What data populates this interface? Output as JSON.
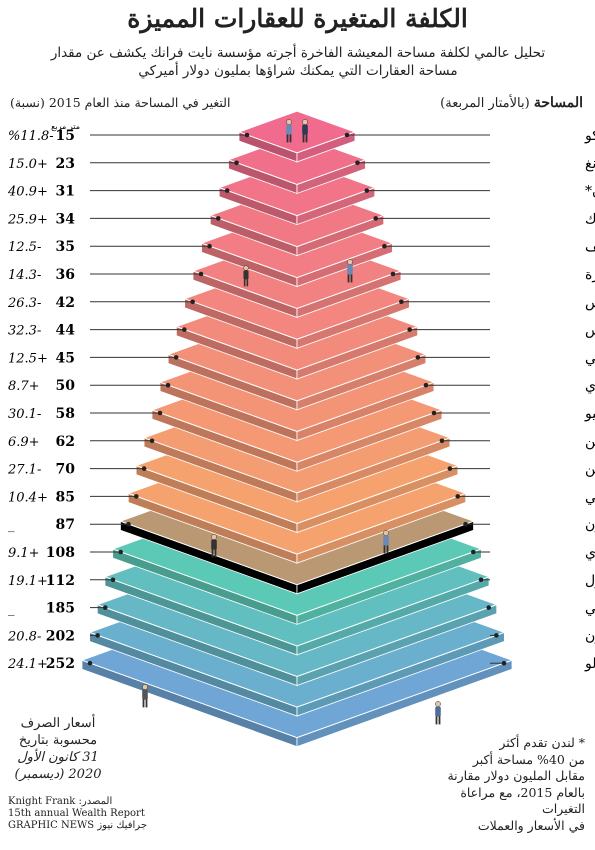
{
  "title": "الكلفة المتغيرة للعقارات المميزة",
  "subtitle_line1": "تحليل عالمي لكلفة مساحة المعيشة الفاخرة أجرته مؤسسة نايت فرانك يكشف عن مقدار",
  "subtitle_line2": "مساحة العقارات التي يمكنك شراؤها بمليون دولار أميركي",
  "header_area_label": "المساحة",
  "header_area_unit": "(بالأمتار المربعة)",
  "header_change_label": "التغير في المساحة منذ العام 2015 (نسبة)",
  "unit_note": "متر مربع",
  "note_line1": "أسعار الصرف",
  "note_line2": "محسوبة بتاريخ",
  "note_line3": "31 كانون الأول",
  "note_line4": "2020 (ديسمبر)",
  "source_line1": "المصدر: Knight Frank",
  "source_line2": "15th annual Wealth Report",
  "source_line3": "GRAPHIC NEWS جرافيك نيوز",
  "footnote_line1": "* لندن تقدم أكثر",
  "footnote_line2": "من 40% مساحة أكبر",
  "footnote_line3": "مقابل المليون دولار مقارنة",
  "footnote_line4": "بالعام 2015، مع مراعاة التغيرات",
  "footnote_line5": "في الأسعار والعملات",
  "colors": {
    "pink_top": "#f06b8e",
    "pink_mid": "#f39ab5",
    "orange": "#f5a26f",
    "brown": "#b99873",
    "teal": "#5cc9b7",
    "blue": "#6fa6d6"
  },
  "chart_data": {
    "type": "bar",
    "categories": [
      "موناكو",
      "هونغ كونغ",
      "لندن*",
      "نيويورك",
      "جنيف",
      "سنغافورة",
      "باريس",
      "لوس أنجلوس",
      "سيدني",
      "شنغهاي",
      "طوكيو",
      "بكين",
      "برلين",
      "ميامي",
      "ملبورن",
      "مومباي",
      "اسطنبول",
      "دبي",
      "كيب تاون",
      "ساو باولو"
    ],
    "values": [
      15,
      23,
      31,
      34,
      35,
      36,
      42,
      44,
      45,
      50,
      58,
      62,
      70,
      85,
      87,
      108,
      112,
      185,
      202,
      252
    ],
    "changes": [
      "%11.8-",
      "15.0+",
      "40.9+",
      "25.9+",
      "12.5-",
      "14.3-",
      "26.3-",
      "32.3-",
      "12.5+",
      "8.7+",
      "30.1-",
      "6.9+",
      "27.1-",
      "10.4+",
      "_",
      "9.1+",
      "19.1+",
      "_",
      "20.8-",
      "24.1+"
    ],
    "xlabel": "",
    "ylabel": "المساحة (بالأمتار المربعة)",
    "title": "الكلفة المتغيرة للعقارات المميزة"
  }
}
